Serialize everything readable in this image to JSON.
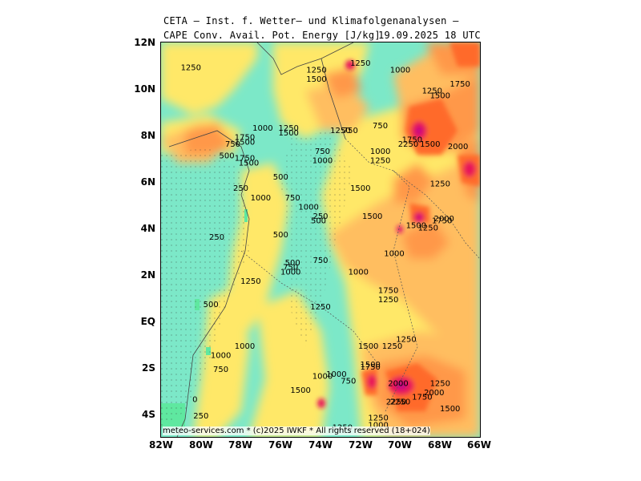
{
  "header": {
    "title": "CETA — Inst. f. Wetter— und Klimafolgenanalysen —",
    "subtitle": "CAPE Conv. Avail. Pot. Energy [J/kg]",
    "timestamp": "19.09.2025 18 UTC"
  },
  "footer": "meteo-services.com * (c)2025 IWKF * All rights reserved (18+024)",
  "axes": {
    "lat_labels": [
      "12N",
      "10N",
      "8N",
      "6N",
      "4N",
      "2N",
      "EQ",
      "2S",
      "4S"
    ],
    "lon_labels": [
      "82W",
      "80W",
      "78W",
      "76W",
      "74W",
      "72W",
      "70W",
      "68W",
      "66W"
    ]
  },
  "colors": {
    "cape_0": "#7ce8c8",
    "cape_250": "#ffe868",
    "cape_1000": "#ffbe60",
    "cape_1500": "#ff9848",
    "cape_2000": "#ff6a2a",
    "cape_2500": "#e8185a",
    "cape_3000": "#c0108a",
    "low_land": "#5fe8a0"
  },
  "contour_labels": [
    {
      "text": "1250",
      "lon": -80.5,
      "lat": 10.8
    },
    {
      "text": "1250",
      "lon": -74.2,
      "lat": 10.7
    },
    {
      "text": "1500",
      "lon": -74.2,
      "lat": 10.3
    },
    {
      "text": "1250",
      "lon": -72.0,
      "lat": 11.0
    },
    {
      "text": "1000",
      "lon": -70.0,
      "lat": 10.7
    },
    {
      "text": "1250",
      "lon": -68.4,
      "lat": 9.8
    },
    {
      "text": "1500",
      "lon": -68.0,
      "lat": 9.6
    },
    {
      "text": "1750",
      "lon": -67.0,
      "lat": 10.1
    },
    {
      "text": "1000",
      "lon": -76.9,
      "lat": 8.2
    },
    {
      "text": "1250",
      "lon": -75.6,
      "lat": 8.2
    },
    {
      "text": "1500",
      "lon": -75.6,
      "lat": 8.0
    },
    {
      "text": "1250",
      "lon": -73.0,
      "lat": 8.1
    },
    {
      "text": "750",
      "lon": -72.5,
      "lat": 8.1
    },
    {
      "text": "750",
      "lon": -71.0,
      "lat": 8.3
    },
    {
      "text": "1750",
      "lon": -77.8,
      "lat": 7.8
    },
    {
      "text": "1500",
      "lon": -77.8,
      "lat": 7.6
    },
    {
      "text": "750",
      "lon": -78.4,
      "lat": 7.5
    },
    {
      "text": "500",
      "lon": -78.7,
      "lat": 7.0
    },
    {
      "text": "1750",
      "lon": -77.8,
      "lat": 6.9
    },
    {
      "text": "1500",
      "lon": -77.6,
      "lat": 6.7
    },
    {
      "text": "750",
      "lon": -73.9,
      "lat": 7.2
    },
    {
      "text": "1000",
      "lon": -73.9,
      "lat": 6.8
    },
    {
      "text": "1000",
      "lon": -71.0,
      "lat": 7.2
    },
    {
      "text": "1250",
      "lon": -71.0,
      "lat": 6.8
    },
    {
      "text": "1750",
      "lon": -69.4,
      "lat": 7.7
    },
    {
      "text": "2250",
      "lon": -69.6,
      "lat": 7.5
    },
    {
      "text": "1500",
      "lon": -68.5,
      "lat": 7.5
    },
    {
      "text": "2000",
      "lon": -67.1,
      "lat": 7.4
    },
    {
      "text": "500",
      "lon": -76.0,
      "lat": 6.1
    },
    {
      "text": "250",
      "lon": -78.0,
      "lat": 5.6
    },
    {
      "text": "1000",
      "lon": -77.0,
      "lat": 5.2
    },
    {
      "text": "750",
      "lon": -75.4,
      "lat": 5.2
    },
    {
      "text": "1000",
      "lon": -74.6,
      "lat": 4.8
    },
    {
      "text": "1500",
      "lon": -72.0,
      "lat": 5.6
    },
    {
      "text": "1250",
      "lon": -68.0,
      "lat": 5.8
    },
    {
      "text": "250",
      "lon": -74.0,
      "lat": 4.4
    },
    {
      "text": "500",
      "lon": -74.1,
      "lat": 4.2
    },
    {
      "text": "1500",
      "lon": -71.4,
      "lat": 4.4
    },
    {
      "text": "2000",
      "lon": -67.8,
      "lat": 4.3
    },
    {
      "text": "1750",
      "lon": -67.9,
      "lat": 4.2
    },
    {
      "text": "1500",
      "lon": -69.2,
      "lat": 4.0
    },
    {
      "text": "1250",
      "lon": -68.6,
      "lat": 3.9
    },
    {
      "text": "250",
      "lon": -79.2,
      "lat": 3.5
    },
    {
      "text": "500",
      "lon": -76.0,
      "lat": 3.6
    },
    {
      "text": "1000",
      "lon": -70.3,
      "lat": 2.8
    },
    {
      "text": "500",
      "lon": -75.4,
      "lat": 2.4
    },
    {
      "text": "750",
      "lon": -75.5,
      "lat": 2.2
    },
    {
      "text": "1000",
      "lon": -75.5,
      "lat": 2.0
    },
    {
      "text": "750",
      "lon": -74.0,
      "lat": 2.5
    },
    {
      "text": "1000",
      "lon": -72.1,
      "lat": 2.0
    },
    {
      "text": "1250",
      "lon": -77.5,
      "lat": 1.6
    },
    {
      "text": "1750",
      "lon": -70.6,
      "lat": 1.2
    },
    {
      "text": "1250",
      "lon": -70.6,
      "lat": 0.8
    },
    {
      "text": "500",
      "lon": -79.5,
      "lat": 0.6
    },
    {
      "text": "1250",
      "lon": -74.0,
      "lat": 0.5
    },
    {
      "text": "1250",
      "lon": -69.7,
      "lat": -0.9
    },
    {
      "text": "1000",
      "lon": -77.8,
      "lat": -1.2
    },
    {
      "text": "1500",
      "lon": -71.6,
      "lat": -1.2
    },
    {
      "text": "1250",
      "lon": -70.4,
      "lat": -1.2
    },
    {
      "text": "1000",
      "lon": -79.0,
      "lat": -1.6
    },
    {
      "text": "750",
      "lon": -79.0,
      "lat": -2.2
    },
    {
      "text": "1500",
      "lon": -71.5,
      "lat": -2.0
    },
    {
      "text": "1750",
      "lon": -71.5,
      "lat": -2.1
    },
    {
      "text": "1000",
      "lon": -73.2,
      "lat": -2.4
    },
    {
      "text": "1000",
      "lon": -73.9,
      "lat": -2.5
    },
    {
      "text": "750",
      "lon": -72.6,
      "lat": -2.7
    },
    {
      "text": "2000",
      "lon": -70.1,
      "lat": -2.8
    },
    {
      "text": "1500",
      "lon": -75.0,
      "lat": -3.1
    },
    {
      "text": "1250",
      "lon": -68.0,
      "lat": -2.8
    },
    {
      "text": "2000",
      "lon": -68.3,
      "lat": -3.2
    },
    {
      "text": "1750",
      "lon": -68.9,
      "lat": -3.4
    },
    {
      "text": "2250",
      "lon": -70.2,
      "lat": -3.6
    },
    {
      "text": "2250",
      "lon": -70.0,
      "lat": -3.6
    },
    {
      "text": "0",
      "lon": -80.3,
      "lat": -3.5
    },
    {
      "text": "1500",
      "lon": -67.5,
      "lat": -3.9
    },
    {
      "text": "1250",
      "lon": -71.1,
      "lat": -4.3
    },
    {
      "text": "250",
      "lon": -80.0,
      "lat": -4.2
    },
    {
      "text": "1000",
      "lon": -71.1,
      "lat": -4.6
    },
    {
      "text": "1250",
      "lon": -72.9,
      "lat": -4.7
    }
  ]
}
